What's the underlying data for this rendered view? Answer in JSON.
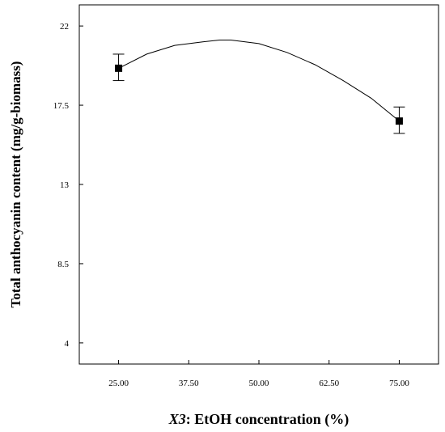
{
  "chart_data": {
    "type": "line",
    "xlabel_var": "X3",
    "xlabel_rest": ": EtOH concentration (%)",
    "ylabel": "Total anthocyanin content (mg/g-biomass)",
    "xlim": [
      18,
      82
    ],
    "ylim": [
      2.8,
      23.2
    ],
    "x_ticks": [
      25,
      37.5,
      50,
      62.5,
      75
    ],
    "x_tick_labels": [
      "25.00",
      "37.50",
      "50.00",
      "62.50",
      "75.00"
    ],
    "y_ticks": [
      4,
      8.5,
      13,
      17.5,
      22
    ],
    "y_tick_labels": [
      "4",
      "8.5",
      "13",
      "17.5",
      "22"
    ],
    "curve": {
      "x": [
        25,
        30,
        35,
        40,
        43,
        45,
        50,
        55,
        60,
        65,
        70,
        75
      ],
      "y": [
        19.6,
        20.4,
        20.9,
        21.1,
        21.2,
        21.2,
        21.0,
        20.5,
        19.8,
        18.9,
        17.9,
        16.6
      ]
    },
    "points": [
      {
        "x": 25,
        "y": 19.6,
        "err_low": 18.9,
        "err_high": 20.4
      },
      {
        "x": 75,
        "y": 16.6,
        "err_low": 15.9,
        "err_high": 17.4
      }
    ],
    "grid": false
  }
}
